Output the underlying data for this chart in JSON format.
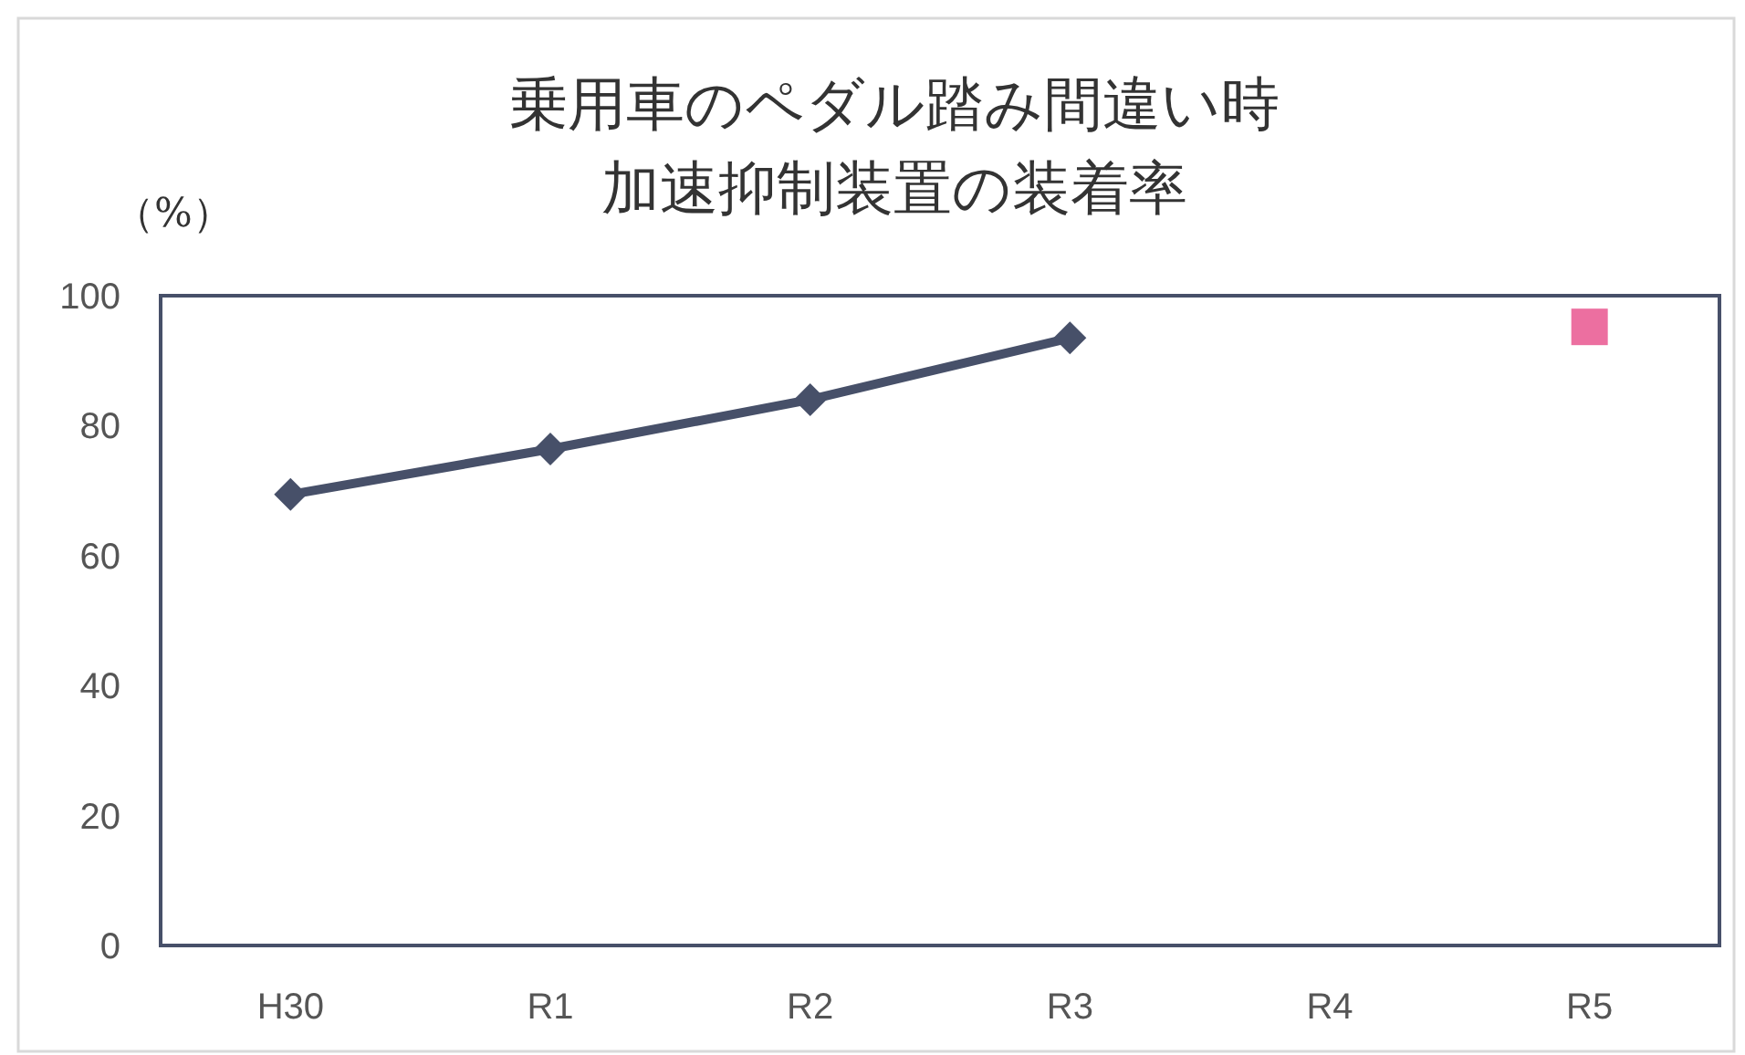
{
  "chart_data": {
    "type": "line",
    "title": "乗用車のペダル踏み間違い時加速抑制装置の装着率",
    "ylabel": "（%）",
    "categories": [
      "H30",
      "R1",
      "R2",
      "R3",
      "R4",
      "R5"
    ],
    "series": [
      {
        "color": "#475069",
        "marker": "diamond",
        "values": [
          69.4,
          76.4,
          84.0,
          93.5,
          null,
          null
        ]
      },
      {
        "type": "scatter",
        "color": "#ec6fa0",
        "marker": "square",
        "values": [
          null,
          null,
          null,
          null,
          null,
          95.2
        ]
      }
    ],
    "ylim": [
      0,
      100
    ],
    "yticks": [
      0,
      20,
      40,
      60,
      80,
      100
    ],
    "grid": false
  }
}
